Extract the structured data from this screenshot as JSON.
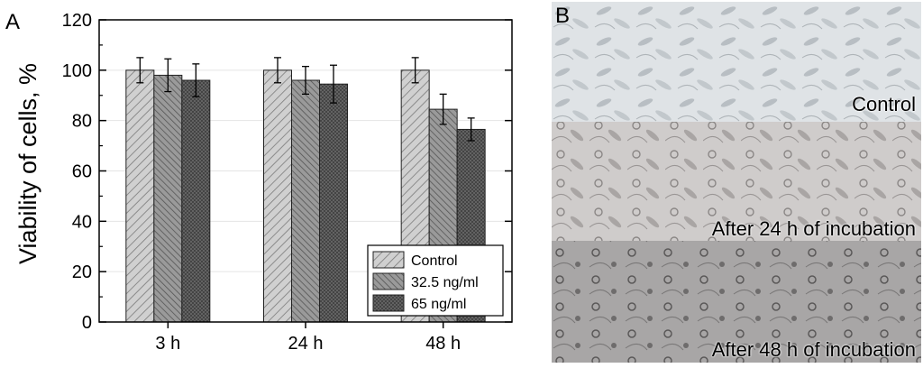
{
  "panel_a": {
    "letter": "A"
  },
  "panel_b": {
    "letter": "B",
    "images": [
      {
        "label": "Control"
      },
      {
        "label": "After 24 h of incubation"
      },
      {
        "label": "After 48 h of incubation"
      }
    ]
  },
  "chart_data": {
    "type": "bar",
    "title": "",
    "xlabel": "",
    "ylabel": "Viability of cells, %",
    "ylim": [
      0,
      120
    ],
    "yticks": [
      0,
      20,
      40,
      60,
      80,
      100,
      120
    ],
    "grid": true,
    "legend_position": "bottom-right",
    "categories": [
      "3 h",
      "24 h",
      "48 h"
    ],
    "series": [
      {
        "name": "Control",
        "values": [
          100,
          100,
          100
        ],
        "errors": [
          5,
          5,
          5
        ],
        "pattern": "diagonal-right",
        "color": "#c8c8c8"
      },
      {
        "name": "32.5 ng/ml",
        "values": [
          98,
          96,
          84.5
        ],
        "errors": [
          6.5,
          5.5,
          6
        ],
        "pattern": "diagonal-left",
        "color": "#8a8a8a"
      },
      {
        "name": "65 ng/ml",
        "values": [
          96,
          94.5,
          76.5
        ],
        "errors": [
          6.5,
          7.5,
          4.5
        ],
        "pattern": "crosshatch",
        "color": "#4a4a4a"
      }
    ]
  }
}
